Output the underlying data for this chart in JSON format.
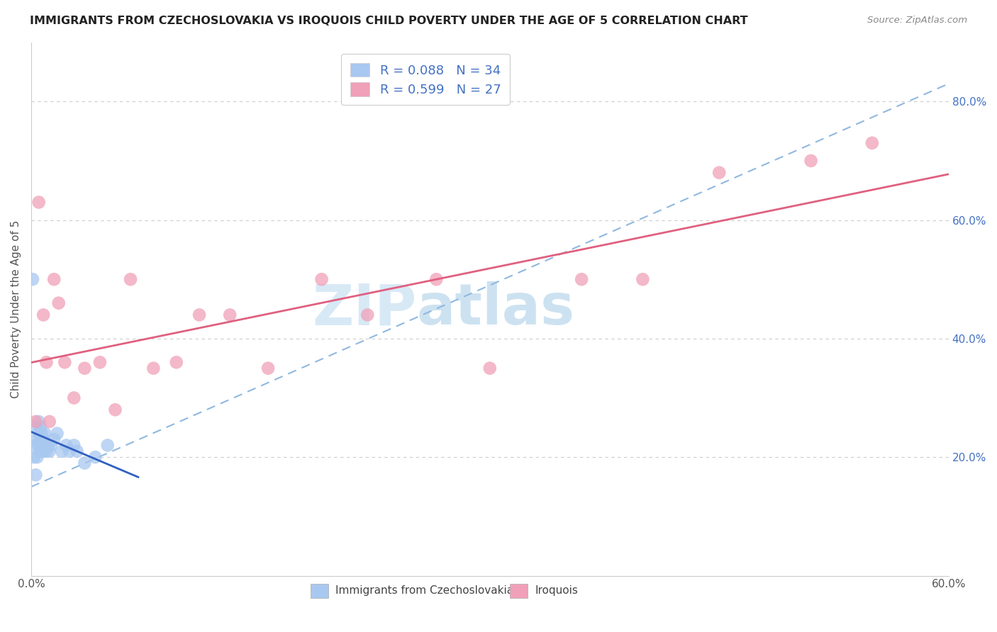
{
  "title": "IMMIGRANTS FROM CZECHOSLOVAKIA VS IROQUOIS CHILD POVERTY UNDER THE AGE OF 5 CORRELATION CHART",
  "source": "Source: ZipAtlas.com",
  "xlabel_blue": "Immigrants from Czechoslovakia",
  "xlabel_pink": "Iroquois",
  "ylabel": "Child Poverty Under the Age of 5",
  "R_blue": 0.088,
  "N_blue": 34,
  "R_pink": 0.599,
  "N_pink": 27,
  "blue_scatter_color": "#A8C8F0",
  "pink_scatter_color": "#F0A0B8",
  "blue_line_color": "#3060C0",
  "pink_line_color": "#E06080",
  "dashed_line_color": "#90B8E0",
  "xlim": [
    0.0,
    0.6
  ],
  "ylim": [
    0.0,
    0.9
  ],
  "x_ticks": [
    0.0,
    0.6
  ],
  "x_tick_labels": [
    "0.0%",
    "60.0%"
  ],
  "y_ticks_right": [
    0.2,
    0.4,
    0.6,
    0.8
  ],
  "y_tick_labels_right": [
    "20.0%",
    "40.0%",
    "60.0%",
    "80.0%"
  ],
  "blue_x": [
    0.001,
    0.002,
    0.003,
    0.003,
    0.004,
    0.004,
    0.004,
    0.005,
    0.005,
    0.005,
    0.006,
    0.006,
    0.006,
    0.007,
    0.007,
    0.008,
    0.008,
    0.009,
    0.009,
    0.01,
    0.01,
    0.011,
    0.012,
    0.013,
    0.015,
    0.017,
    0.02,
    0.023,
    0.025,
    0.028,
    0.03,
    0.035,
    0.042,
    0.05
  ],
  "blue_y": [
    0.5,
    0.2,
    0.17,
    0.22,
    0.2,
    0.23,
    0.25,
    0.22,
    0.24,
    0.26,
    0.21,
    0.23,
    0.25,
    0.22,
    0.24,
    0.21,
    0.23,
    0.22,
    0.24,
    0.21,
    0.22,
    0.22,
    0.21,
    0.22,
    0.23,
    0.24,
    0.21,
    0.22,
    0.21,
    0.22,
    0.21,
    0.19,
    0.2,
    0.22
  ],
  "pink_x": [
    0.003,
    0.005,
    0.008,
    0.01,
    0.012,
    0.015,
    0.018,
    0.022,
    0.028,
    0.035,
    0.045,
    0.055,
    0.065,
    0.08,
    0.095,
    0.11,
    0.13,
    0.155,
    0.19,
    0.22,
    0.265,
    0.3,
    0.36,
    0.4,
    0.45,
    0.51,
    0.55
  ],
  "pink_y": [
    0.26,
    0.63,
    0.44,
    0.36,
    0.26,
    0.5,
    0.46,
    0.36,
    0.3,
    0.35,
    0.36,
    0.28,
    0.5,
    0.35,
    0.36,
    0.44,
    0.44,
    0.35,
    0.5,
    0.44,
    0.5,
    0.35,
    0.5,
    0.5,
    0.68,
    0.7,
    0.73
  ],
  "watermark_zip": "ZIP",
  "watermark_atlas": "atlas",
  "legend_blue_label": "R = 0.088   N = 34",
  "legend_pink_label": "R = 0.599   N = 27"
}
